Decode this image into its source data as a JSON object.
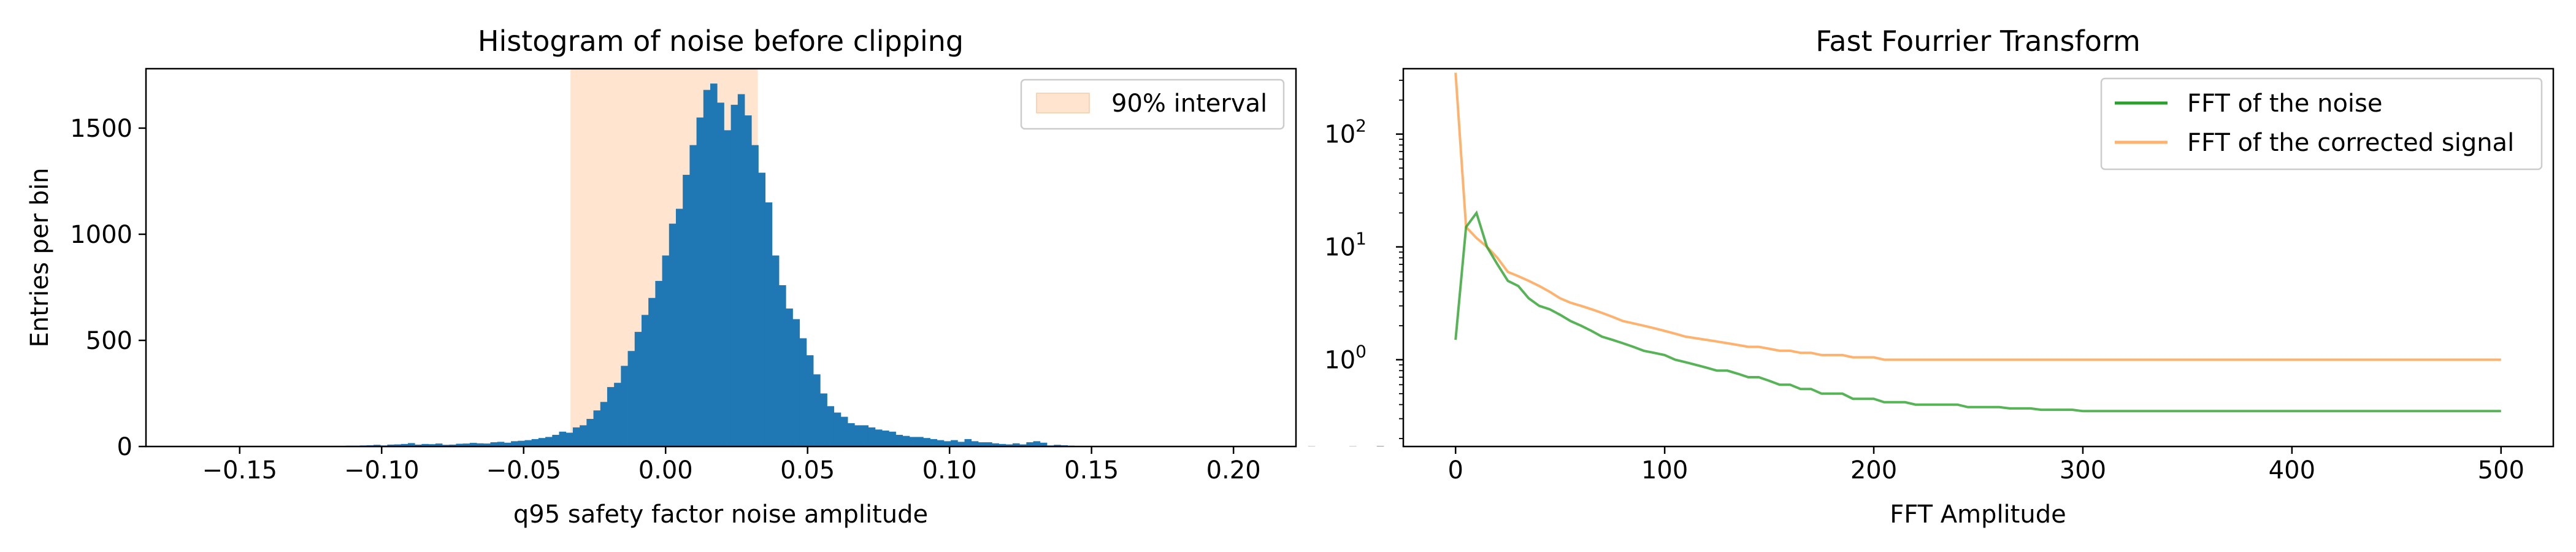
{
  "chart_data": [
    {
      "type": "histogram",
      "title": "Histogram of noise before clipping",
      "xlabel": "q95 safety factor noise amplitude",
      "ylabel": "Entries per bin",
      "xlim": [
        -0.183,
        0.222
      ],
      "ylim": [
        0,
        1780
      ],
      "xticks": [
        {
          "value": -0.15,
          "label": "−0.15"
        },
        {
          "value": -0.1,
          "label": "−0.10"
        },
        {
          "value": -0.05,
          "label": "−0.05"
        },
        {
          "value": 0.0,
          "label": "0.00"
        },
        {
          "value": 0.05,
          "label": "0.05"
        },
        {
          "value": 0.1,
          "label": "0.10"
        },
        {
          "value": 0.15,
          "label": "0.15"
        },
        {
          "value": 0.2,
          "label": "0.20"
        }
      ],
      "yticks": [
        {
          "value": 0,
          "label": "0"
        },
        {
          "value": 500,
          "label": "500"
        },
        {
          "value": 1000,
          "label": "1000"
        },
        {
          "value": 1500,
          "label": "1500"
        }
      ],
      "bar_color": "#1f77b4",
      "band": {
        "x0": -0.0335,
        "x1": 0.0325,
        "color": "#ffe5cf",
        "label": "90% interval"
      },
      "legend": {
        "placement": "top-right"
      },
      "bin_edges_start": -0.1682,
      "bin_width": 0.00242,
      "counts": [
        3,
        0,
        1,
        0,
        0,
        1,
        0,
        0,
        0,
        0,
        0,
        1,
        0,
        0,
        0,
        0,
        0,
        1,
        1,
        2,
        2,
        3,
        3,
        4,
        4,
        5,
        6,
        8,
        5,
        9,
        10,
        12,
        16,
        9,
        12,
        11,
        14,
        8,
        9,
        13,
        14,
        17,
        15,
        14,
        20,
        22,
        18,
        25,
        27,
        30,
        35,
        40,
        45,
        55,
        70,
        65,
        90,
        100,
        130,
        170,
        210,
        280,
        300,
        380,
        450,
        540,
        620,
        700,
        780,
        900,
        1050,
        1120,
        1280,
        1420,
        1550,
        1680,
        1710,
        1620,
        1490,
        1610,
        1660,
        1560,
        1420,
        1290,
        1150,
        900,
        760,
        650,
        600,
        510,
        430,
        340,
        250,
        190,
        160,
        140,
        110,
        100,
        100,
        90,
        80,
        75,
        70,
        55,
        50,
        45,
        45,
        40,
        35,
        30,
        25,
        30,
        22,
        35,
        25,
        20,
        20,
        15,
        12,
        10,
        15,
        10,
        20,
        25,
        18,
        5,
        8,
        6,
        4,
        3,
        2,
        1,
        1,
        2,
        1,
        0,
        1,
        0,
        0,
        0,
        0,
        0,
        0,
        0,
        0,
        0,
        0,
        0,
        0,
        0,
        0,
        0,
        0,
        0,
        0,
        0,
        0,
        0,
        0,
        1,
        0,
        0,
        0,
        1,
        0,
        0,
        0,
        0,
        0,
        1,
        0,
        0,
        0,
        2
      ]
    },
    {
      "type": "line",
      "title": "Fast Fourrier Transform",
      "xlabel": "FFT Amplitude",
      "ylabel": "",
      "yscale": "log",
      "xlim": [
        -25,
        525
      ],
      "ylim": [
        0.17,
        380
      ],
      "xticks": [
        {
          "value": 0,
          "label": "0"
        },
        {
          "value": 100,
          "label": "100"
        },
        {
          "value": 200,
          "label": "200"
        },
        {
          "value": 300,
          "label": "300"
        },
        {
          "value": 400,
          "label": "400"
        },
        {
          "value": 500,
          "label": "500"
        }
      ],
      "yticks": [
        {
          "value": 1,
          "base": "10",
          "exp": "0"
        },
        {
          "value": 10,
          "base": "10",
          "exp": "1"
        },
        {
          "value": 100,
          "base": "10",
          "exp": "2"
        }
      ],
      "legend": {
        "placement": "top-right"
      },
      "series": [
        {
          "name": "FFT of the noise",
          "color": "#2ca02c",
          "alpha": 0.8,
          "x": [
            0,
            5,
            10,
            15,
            20,
            25,
            30,
            35,
            40,
            45,
            50,
            55,
            60,
            65,
            70,
            75,
            80,
            85,
            90,
            95,
            100,
            105,
            110,
            115,
            120,
            125,
            130,
            135,
            140,
            145,
            150,
            155,
            160,
            165,
            170,
            175,
            180,
            185,
            190,
            195,
            200,
            205,
            210,
            215,
            220,
            225,
            230,
            235,
            240,
            245,
            250,
            255,
            260,
            265,
            270,
            275,
            280,
            285,
            290,
            295,
            300,
            305,
            310,
            315,
            320,
            325,
            330,
            335,
            340,
            345,
            350,
            355,
            360,
            365,
            370,
            375,
            380,
            385,
            390,
            395,
            400,
            405,
            410,
            415,
            420,
            425,
            430,
            435,
            440,
            445,
            450,
            455,
            460,
            465,
            470,
            475,
            480,
            485,
            490,
            495,
            500
          ],
          "y": [
            1.5,
            15,
            20,
            10,
            7,
            5,
            4.5,
            3.5,
            3,
            2.8,
            2.5,
            2.2,
            2.0,
            1.8,
            1.6,
            1.5,
            1.4,
            1.3,
            1.2,
            1.15,
            1.1,
            1.0,
            0.95,
            0.9,
            0.85,
            0.8,
            0.8,
            0.75,
            0.7,
            0.7,
            0.65,
            0.6,
            0.6,
            0.55,
            0.55,
            0.5,
            0.5,
            0.5,
            0.45,
            0.45,
            0.45,
            0.42,
            0.42,
            0.42,
            0.4,
            0.4,
            0.4,
            0.4,
            0.4,
            0.38,
            0.38,
            0.38,
            0.38,
            0.37,
            0.37,
            0.37,
            0.36,
            0.36,
            0.36,
            0.36,
            0.35,
            0.35,
            0.35,
            0.35,
            0.35,
            0.35,
            0.35,
            0.35,
            0.35,
            0.35,
            0.35,
            0.35,
            0.35,
            0.35,
            0.35,
            0.35,
            0.35,
            0.35,
            0.35,
            0.35,
            0.35,
            0.35,
            0.35,
            0.35,
            0.35,
            0.35,
            0.35,
            0.35,
            0.35,
            0.35,
            0.35,
            0.35,
            0.35,
            0.35,
            0.35,
            0.35,
            0.35,
            0.35,
            0.35,
            0.35,
            0.35
          ]
        },
        {
          "name": "FFT of the corrected signal",
          "color": "#ff7f0e",
          "alpha": 0.6,
          "x": [
            0,
            5,
            10,
            15,
            20,
            25,
            30,
            35,
            40,
            45,
            50,
            55,
            60,
            65,
            70,
            75,
            80,
            85,
            90,
            95,
            100,
            105,
            110,
            115,
            120,
            125,
            130,
            135,
            140,
            145,
            150,
            155,
            160,
            165,
            170,
            175,
            180,
            185,
            190,
            195,
            200,
            205,
            210,
            215,
            220,
            225,
            230,
            235,
            240,
            245,
            250,
            255,
            260,
            265,
            270,
            275,
            280,
            285,
            290,
            295,
            300,
            305,
            310,
            315,
            320,
            325,
            330,
            335,
            340,
            345,
            350,
            355,
            360,
            365,
            370,
            375,
            380,
            385,
            390,
            395,
            400,
            405,
            410,
            415,
            420,
            425,
            430,
            435,
            440,
            445,
            450,
            455,
            460,
            465,
            470,
            475,
            480,
            485,
            490,
            495,
            500
          ],
          "y": [
            350,
            15,
            12,
            10,
            8,
            6,
            5.5,
            5,
            4.5,
            4,
            3.5,
            3.2,
            3.0,
            2.8,
            2.6,
            2.4,
            2.2,
            2.1,
            2.0,
            1.9,
            1.8,
            1.7,
            1.6,
            1.55,
            1.5,
            1.45,
            1.4,
            1.35,
            1.3,
            1.3,
            1.25,
            1.2,
            1.2,
            1.15,
            1.15,
            1.1,
            1.1,
            1.1,
            1.05,
            1.05,
            1.05,
            1.0,
            1.0,
            1.0,
            1.0,
            1.0,
            1.0,
            1.0,
            1.0,
            1.0,
            1.0,
            1.0,
            1.0,
            1.0,
            1.0,
            1.0,
            1.0,
            1.0,
            1.0,
            1.0,
            1.0,
            1.0,
            1.0,
            1.0,
            1.0,
            1.0,
            1.0,
            1.0,
            1.0,
            1.0,
            1.0,
            1.0,
            1.0,
            1.0,
            1.0,
            1.0,
            1.0,
            1.0,
            1.0,
            1.0,
            1.0,
            1.0,
            1.0,
            1.0,
            1.0,
            1.0,
            1.0,
            1.0,
            1.0,
            1.0,
            1.0,
            1.0,
            1.0,
            1.0,
            1.0,
            1.0,
            1.0,
            1.0,
            1.0,
            1.0,
            1.0
          ]
        }
      ]
    }
  ]
}
